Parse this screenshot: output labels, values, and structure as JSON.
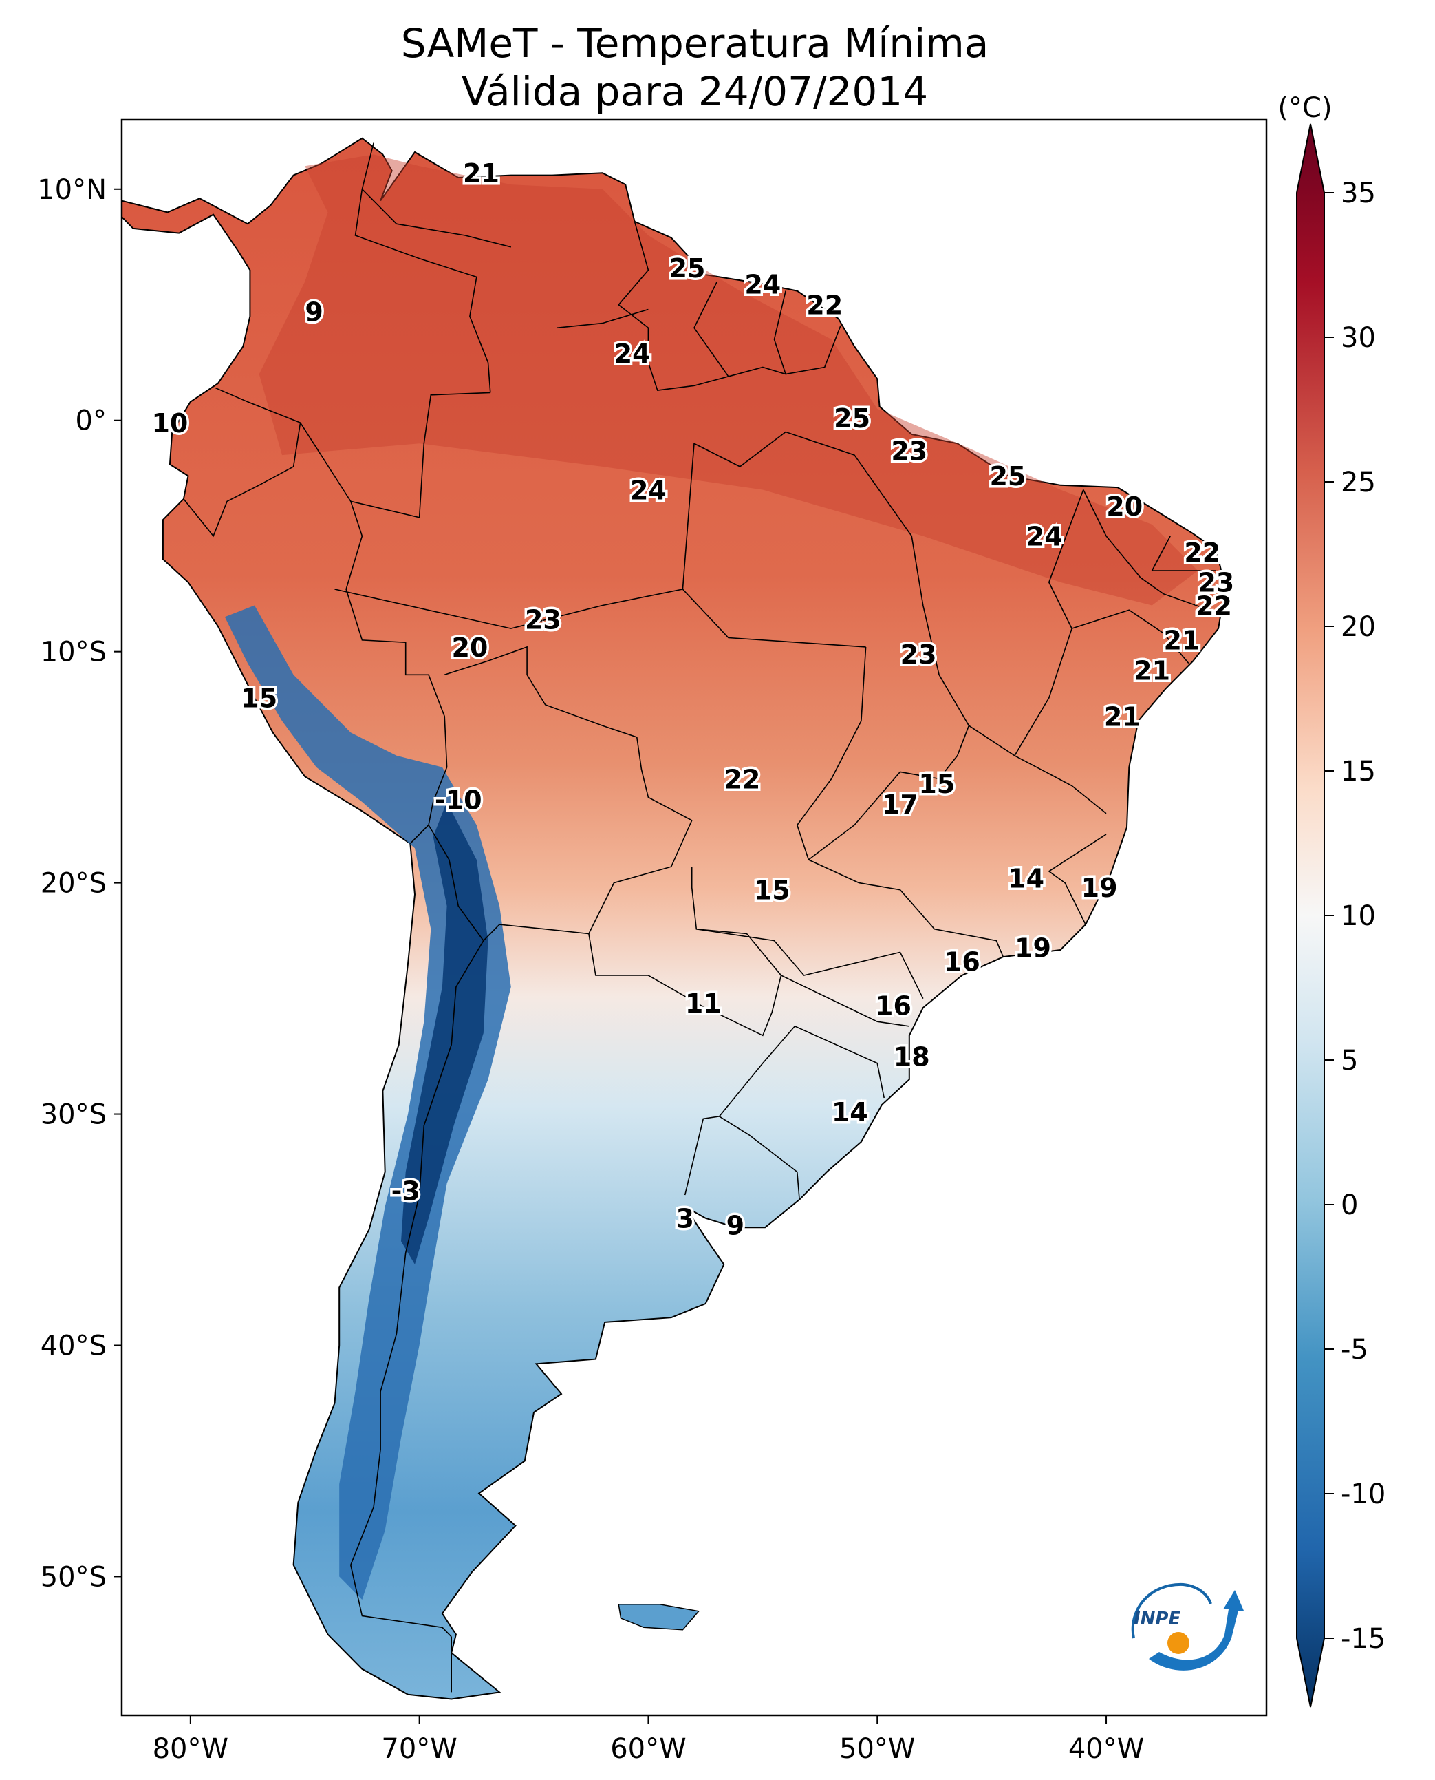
{
  "title": {
    "line1": "SAMeT - Temperatura Mínima",
    "line2": "Válida para 24/07/2014"
  },
  "map": {
    "lon_range": [
      -83,
      -33
    ],
    "lat_range": [
      -56,
      13
    ],
    "lat_ticks": [
      {
        "value": 10,
        "label": "10°N"
      },
      {
        "value": 0,
        "label": "0°"
      },
      {
        "value": -10,
        "label": "10°S"
      },
      {
        "value": -20,
        "label": "20°S"
      },
      {
        "value": -30,
        "label": "30°S"
      },
      {
        "value": -40,
        "label": "40°S"
      },
      {
        "value": -50,
        "label": "50°S"
      }
    ],
    "lon_ticks": [
      {
        "value": -80,
        "label": "80°W"
      },
      {
        "value": -70,
        "label": "70°W"
      },
      {
        "value": -60,
        "label": "60°W"
      },
      {
        "value": -50,
        "label": "50°W"
      },
      {
        "value": -40,
        "label": "40°W"
      }
    ],
    "station_labels": [
      {
        "lon": -67.3,
        "lat": 10.6,
        "value": "21"
      },
      {
        "lon": -74.6,
        "lat": 4.6,
        "value": "9"
      },
      {
        "lon": -80.9,
        "lat": -0.2,
        "value": "10"
      },
      {
        "lon": -58.3,
        "lat": 6.5,
        "value": "25"
      },
      {
        "lon": -55.0,
        "lat": 5.8,
        "value": "24"
      },
      {
        "lon": -52.3,
        "lat": 4.9,
        "value": "22"
      },
      {
        "lon": -60.7,
        "lat": 2.8,
        "value": "24"
      },
      {
        "lon": -51.1,
        "lat": 0.0,
        "value": "25"
      },
      {
        "lon": -48.6,
        "lat": -1.4,
        "value": "23"
      },
      {
        "lon": -44.3,
        "lat": -2.5,
        "value": "25"
      },
      {
        "lon": -60.0,
        "lat": -3.1,
        "value": "24"
      },
      {
        "lon": -39.2,
        "lat": -3.8,
        "value": "20"
      },
      {
        "lon": -42.7,
        "lat": -5.1,
        "value": "24"
      },
      {
        "lon": -35.8,
        "lat": -5.8,
        "value": "22"
      },
      {
        "lon": -35.2,
        "lat": -7.1,
        "value": "23"
      },
      {
        "lon": -35.3,
        "lat": -8.1,
        "value": "22"
      },
      {
        "lon": -64.6,
        "lat": -8.7,
        "value": "23"
      },
      {
        "lon": -67.8,
        "lat": -9.9,
        "value": "20"
      },
      {
        "lon": -48.2,
        "lat": -10.2,
        "value": "23"
      },
      {
        "lon": -36.7,
        "lat": -9.6,
        "value": "21"
      },
      {
        "lon": -38.0,
        "lat": -10.9,
        "value": "21"
      },
      {
        "lon": -39.3,
        "lat": -12.9,
        "value": "21"
      },
      {
        "lon": -77.0,
        "lat": -12.1,
        "value": "15"
      },
      {
        "lon": -55.9,
        "lat": -15.6,
        "value": "22"
      },
      {
        "lon": -47.4,
        "lat": -15.8,
        "value": "15"
      },
      {
        "lon": -49.0,
        "lat": -16.7,
        "value": "17"
      },
      {
        "lon": -68.3,
        "lat": -16.5,
        "value": "-10"
      },
      {
        "lon": -43.5,
        "lat": -19.9,
        "value": "14"
      },
      {
        "lon": -40.3,
        "lat": -20.3,
        "value": "19"
      },
      {
        "lon": -54.6,
        "lat": -20.4,
        "value": "15"
      },
      {
        "lon": -43.2,
        "lat": -22.9,
        "value": "19"
      },
      {
        "lon": -46.3,
        "lat": -23.5,
        "value": "16"
      },
      {
        "lon": -57.6,
        "lat": -25.3,
        "value": "11"
      },
      {
        "lon": -49.3,
        "lat": -25.4,
        "value": "16"
      },
      {
        "lon": -48.5,
        "lat": -27.6,
        "value": "18"
      },
      {
        "lon": -51.2,
        "lat": -30.0,
        "value": "14"
      },
      {
        "lon": -70.6,
        "lat": -33.4,
        "value": "-3"
      },
      {
        "lon": -58.4,
        "lat": -34.6,
        "value": "3"
      },
      {
        "lon": -56.2,
        "lat": -34.9,
        "value": "9"
      }
    ]
  },
  "colorbar": {
    "unit": "(°C)",
    "min": -15,
    "max": 35,
    "ticks": [
      {
        "value": 35,
        "label": "35"
      },
      {
        "value": 30,
        "label": "30"
      },
      {
        "value": 25,
        "label": "25"
      },
      {
        "value": 20,
        "label": "20"
      },
      {
        "value": 15,
        "label": "15"
      },
      {
        "value": 10,
        "label": "10"
      },
      {
        "value": 5,
        "label": "5"
      },
      {
        "value": 0,
        "label": "0"
      },
      {
        "value": -5,
        "label": "-5"
      },
      {
        "value": -10,
        "label": "-10"
      },
      {
        "value": -15,
        "label": "-15"
      }
    ],
    "colors": [
      "#08306b",
      "#1f5fa6",
      "#4a90c8",
      "#9ac8e0",
      "#e6f0f6",
      "#f7f7f7",
      "#f9d2bd",
      "#f0a080",
      "#e0694e",
      "#c0302a",
      "#800020",
      "#67001f"
    ]
  },
  "logo": {
    "name": "INPE"
  }
}
